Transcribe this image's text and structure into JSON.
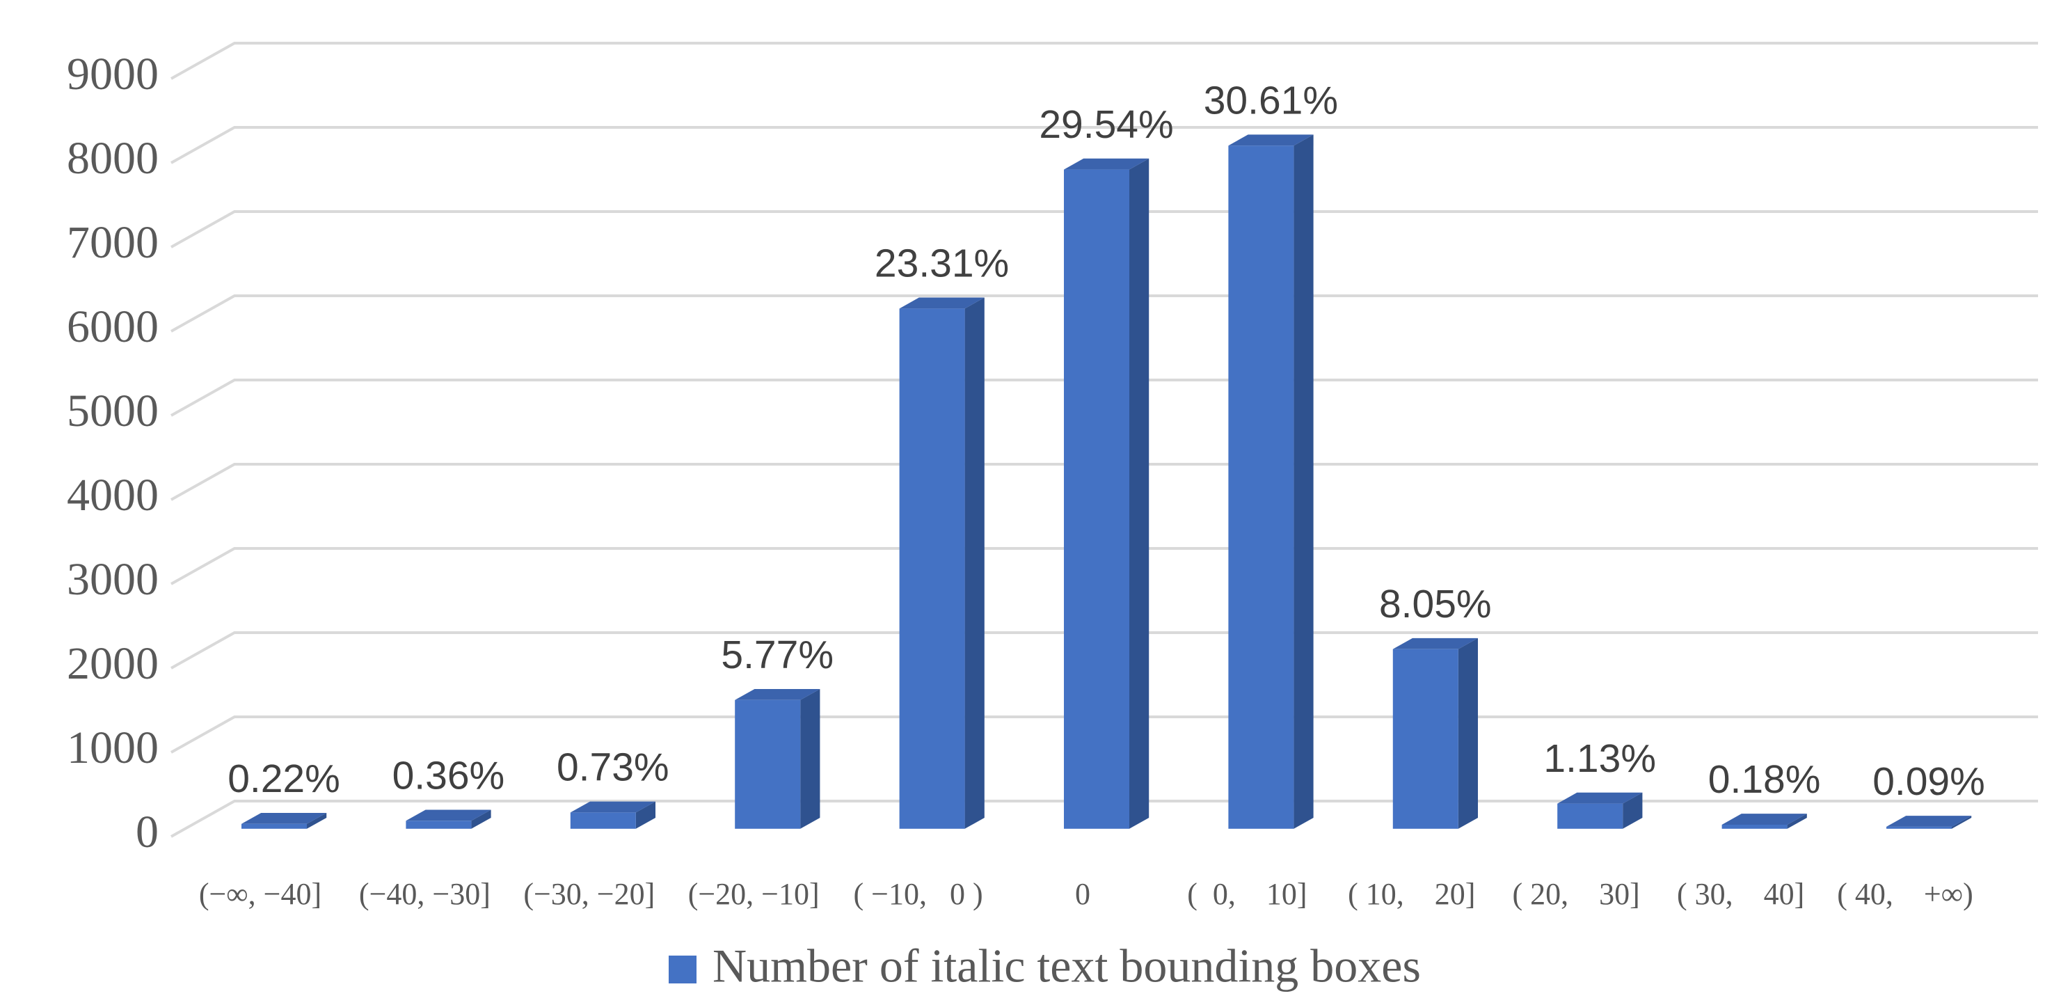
{
  "chart_data": {
    "type": "bar3d",
    "categories": [
      "(−∞, −40]",
      "(−40, −30]",
      "(−30, −20]",
      "(−20, −10]",
      "( −10,   0 )",
      "0",
      "(  0,    10]",
      "( 10,    20]",
      "( 20,    30]",
      "( 30,    40]",
      "( 40,    +∞)"
    ],
    "series": [
      {
        "name": "Number of italic text bounding boxes",
        "color": "#4472c4",
        "values": [
          58,
          95,
          193,
          1529,
          6177,
          7828,
          8112,
          2133,
          299,
          48,
          24
        ],
        "data_labels": [
          "0.22%",
          "0.36%",
          "0.73%",
          "5.77%",
          "23.31%",
          "29.54%",
          "30.61%",
          "8.05%",
          "1.13%",
          "0.18%",
          "0.09%"
        ]
      }
    ],
    "ylim": [
      0,
      9000
    ],
    "yticks": [
      0,
      1000,
      2000,
      3000,
      4000,
      5000,
      6000,
      7000,
      8000,
      9000
    ],
    "grid": true,
    "legend": "bottom"
  }
}
